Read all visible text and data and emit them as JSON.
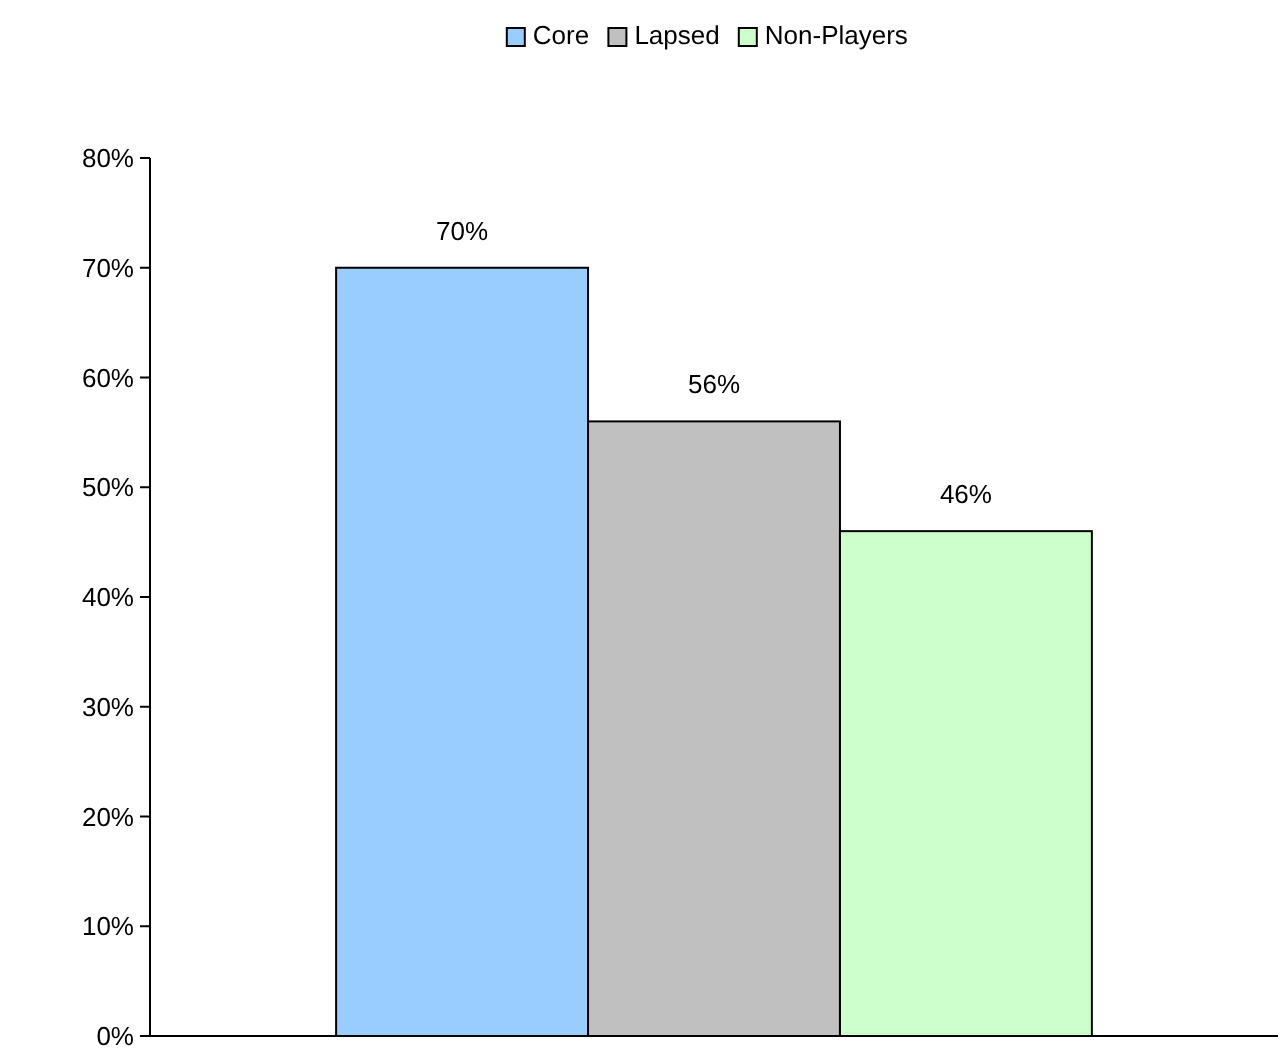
{
  "chart_data": {
    "type": "bar",
    "categories": [
      null
    ],
    "series": [
      {
        "name": "Core",
        "color": "#99ccff",
        "values": [
          70
        ],
        "value_labels": [
          "70%"
        ]
      },
      {
        "name": "Lapsed",
        "color": "#c0c0c0",
        "values": [
          56
        ],
        "value_labels": [
          "56%"
        ]
      },
      {
        "name": "Non-Players",
        "color": "#ccffcc",
        "values": [
          46
        ],
        "value_labels": [
          "46%"
        ]
      }
    ],
    "ylim": [
      0,
      80
    ],
    "yticks": [
      {
        "value": 0,
        "label": "0%"
      },
      {
        "value": 10,
        "label": "10%"
      },
      {
        "value": 20,
        "label": "20%"
      },
      {
        "value": 30,
        "label": "30%"
      },
      {
        "value": 40,
        "label": "40%"
      },
      {
        "value": 50,
        "label": "50%"
      },
      {
        "value": 60,
        "label": "60%"
      },
      {
        "value": 70,
        "label": "70%"
      },
      {
        "value": 80,
        "label": "80%"
      }
    ],
    "legend": "top",
    "grid": false
  }
}
